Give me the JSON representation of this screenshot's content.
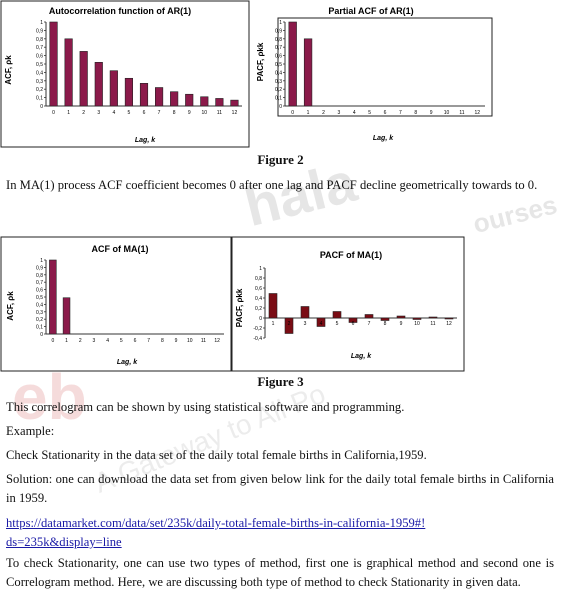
{
  "figure2": {
    "caption": "Figure 2",
    "acf": {
      "title": "Autocorrelation function of AR(1)",
      "ylabel": "ACF, ρk",
      "xlabel": "Lag, k",
      "xticks": [
        "0",
        "1",
        "2",
        "3",
        "4",
        "5",
        "6",
        "7",
        "8",
        "9",
        "10",
        "11",
        "12"
      ],
      "yticks": [
        "0",
        "0,1",
        "0,2",
        "0,3",
        "0,4",
        "0,5",
        "0,6",
        "0,7",
        "0,8",
        "0,9",
        "1"
      ]
    },
    "pacf": {
      "title": "Partial ACF of AR(1)",
      "ylabel": "PACF, ρkk",
      "xlabel": "Lag, k",
      "xticks": [
        "0",
        "1",
        "2",
        "3",
        "4",
        "5",
        "6",
        "7",
        "8",
        "9",
        "10",
        "11",
        "12"
      ],
      "yticks": [
        "0",
        "0,1",
        "0,2",
        "0,3",
        "0,4",
        "0,5",
        "0,6",
        "0,7",
        "0,8",
        "0,9",
        "1"
      ]
    }
  },
  "figure3": {
    "caption": "Figure 3",
    "acf": {
      "title": "ACF of MA(1)",
      "ylabel": "ACF, ρk",
      "xlabel": "Lag, k",
      "xticks": [
        "0",
        "1",
        "2",
        "3",
        "4",
        "5",
        "6",
        "7",
        "8",
        "9",
        "10",
        "11",
        "12"
      ],
      "yticks": [
        "0",
        "0,1",
        "0,2",
        "0,3",
        "0,4",
        "0,5",
        "0,6",
        "0,7",
        "0,8",
        "0,9",
        "1"
      ]
    },
    "pacf": {
      "title": "PACF of MA(1)",
      "ylabel": "PACF, ρkk",
      "xlabel": "Lag, k",
      "xticks": [
        "1",
        "2",
        "3",
        "4",
        "5",
        "6",
        "7",
        "8",
        "9",
        "10",
        "11",
        "12"
      ],
      "yticks": [
        "-0,4",
        "-0,2",
        "0",
        "0,2",
        "0,4",
        "0,6",
        "0,8",
        "1"
      ]
    }
  },
  "text": {
    "p1": "In MA(1) process ACF coefficient becomes 0 after one lag and PACF decline geometrically towards to 0.",
    "p2": "This correlogram can be shown by using statistical software and programming.",
    "p3": "Example:",
    "p4": "Check Stationarity in the data set of the daily total female births in California,1959.",
    "p5": "Solution: one can download the data set from given below link for the daily total female births in California in 1959.",
    "link": "https://datamarket.com/data/set/235k/daily-total-female-births-in-california-1959#!ds=235k&display=line",
    "p6": "To check Stationarity, one can use two types of method, first one is graphical method and second one is Correlogram method. Here, we are discussing both type of method to check Stationarity in given data."
  },
  "watermark": {
    "brand_a": "eb",
    "brand_b": "hala",
    "brand_c": "ourses",
    "tagline": "A Gateway to All Po"
  },
  "colors": {
    "bar": "#8b1a4a",
    "bar_dark": "#7a0c14",
    "link": "#1a1aa6"
  },
  "chart_data": [
    {
      "type": "bar",
      "title": "Autocorrelation function of AR(1)",
      "xlabel": "Lag, k",
      "ylabel": "ACF, ρk",
      "categories": [
        0,
        1,
        2,
        3,
        4,
        5,
        6,
        7,
        8,
        9,
        10,
        11,
        12
      ],
      "values": [
        1,
        0.8,
        0.65,
        0.52,
        0.42,
        0.33,
        0.27,
        0.22,
        0.17,
        0.14,
        0.11,
        0.09,
        0.07
      ],
      "ylim": [
        0,
        1
      ]
    },
    {
      "type": "bar",
      "title": "Partial ACF of AR(1)",
      "xlabel": "Lag, k",
      "ylabel": "PACF, ρkk",
      "categories": [
        0,
        1,
        2,
        3,
        4,
        5,
        6,
        7,
        8,
        9,
        10,
        11,
        12
      ],
      "values": [
        1,
        0.8,
        0,
        0,
        0,
        0,
        0,
        0,
        0,
        0,
        0,
        0,
        0
      ],
      "ylim": [
        0,
        1
      ]
    },
    {
      "type": "bar",
      "title": "ACF of MA(1)",
      "xlabel": "Lag, k",
      "ylabel": "ACF, ρk",
      "categories": [
        0,
        1,
        2,
        3,
        4,
        5,
        6,
        7,
        8,
        9,
        10,
        11,
        12
      ],
      "values": [
        1,
        0.49,
        0,
        0,
        0,
        0,
        0,
        0,
        0,
        0,
        0,
        0,
        0
      ],
      "ylim": [
        0,
        1
      ]
    },
    {
      "type": "bar",
      "title": "PACF of MA(1)",
      "xlabel": "Lag, k",
      "ylabel": "PACF, ρkk",
      "categories": [
        1,
        2,
        3,
        4,
        5,
        6,
        7,
        8,
        9,
        10,
        11,
        12
      ],
      "values": [
        0.49,
        -0.31,
        0.23,
        -0.17,
        0.13,
        -0.09,
        0.07,
        -0.05,
        0.04,
        -0.03,
        0.02,
        -0.02
      ],
      "ylim": [
        -0.4,
        1
      ]
    }
  ]
}
